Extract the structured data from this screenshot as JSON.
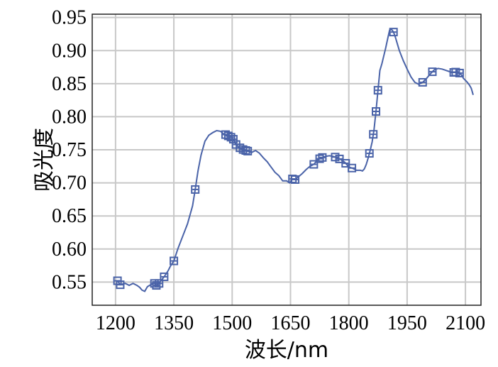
{
  "chart_data": {
    "type": "line",
    "title": "",
    "xlabel": "波长/nm",
    "ylabel": "吸光度",
    "xlim": [
      1140,
      2140
    ],
    "ylim": [
      0.515,
      0.955
    ],
    "grid": true,
    "x_ticks": [
      1200,
      1350,
      1500,
      1650,
      1800,
      1950,
      2100
    ],
    "y_ticks": [
      0.55,
      0.6,
      0.65,
      0.7,
      0.75,
      0.8,
      0.85,
      0.9,
      0.95
    ],
    "x_tick_labels": [
      "1200",
      "1350",
      "1500",
      "1650",
      "1800",
      "1950",
      "2100"
    ],
    "y_tick_labels": [
      "0.55",
      "0.60",
      "0.65",
      "0.70",
      "0.75",
      "0.80",
      "0.85",
      "0.90",
      "0.95"
    ],
    "series": [
      {
        "color": "#4a63a8",
        "x": [
          1205,
          1212,
          1225,
          1235,
          1245,
          1255,
          1262,
          1268,
          1275,
          1282,
          1290,
          1300,
          1305,
          1312,
          1318,
          1325,
          1335,
          1342,
          1350,
          1360,
          1370,
          1385,
          1398,
          1405,
          1412,
          1420,
          1430,
          1440,
          1450,
          1460,
          1470,
          1478,
          1483,
          1490,
          1497,
          1503,
          1510,
          1515,
          1520,
          1525,
          1530,
          1535,
          1540,
          1550,
          1560,
          1570,
          1580,
          1590,
          1600,
          1610,
          1620,
          1630,
          1640,
          1648,
          1655,
          1662,
          1670,
          1680,
          1690,
          1700,
          1710,
          1720,
          1730,
          1740,
          1750,
          1760,
          1770,
          1780,
          1790,
          1800,
          1810,
          1820,
          1830,
          1835,
          1840,
          1845,
          1850,
          1855,
          1860,
          1865,
          1870,
          1875,
          1880,
          1885,
          1890,
          1895,
          1900,
          1905,
          1910,
          1915,
          1920,
          1930,
          1940,
          1950,
          1960,
          1970,
          1980,
          1990,
          2000,
          2010,
          2020,
          2030,
          2040,
          2050,
          2060,
          2070,
          2080,
          2085,
          2090,
          2095,
          2100,
          2105,
          2110,
          2115,
          2120
        ],
        "y": [
          0.552,
          0.546,
          0.548,
          0.545,
          0.548,
          0.545,
          0.542,
          0.538,
          0.536,
          0.543,
          0.546,
          0.548,
          0.545,
          0.548,
          0.553,
          0.558,
          0.567,
          0.575,
          0.582,
          0.6,
          0.615,
          0.638,
          0.665,
          0.69,
          0.718,
          0.742,
          0.763,
          0.772,
          0.776,
          0.779,
          0.778,
          0.774,
          0.773,
          0.771,
          0.769,
          0.766,
          0.758,
          0.755,
          0.753,
          0.751,
          0.75,
          0.749,
          0.748,
          0.746,
          0.749,
          0.745,
          0.738,
          0.732,
          0.724,
          0.716,
          0.711,
          0.703,
          0.703,
          0.7,
          0.706,
          0.705,
          0.709,
          0.714,
          0.72,
          0.725,
          0.728,
          0.735,
          0.738,
          0.74,
          0.741,
          0.74,
          0.738,
          0.735,
          0.731,
          0.724,
          0.722,
          0.719,
          0.719,
          0.718,
          0.721,
          0.728,
          0.738,
          0.749,
          0.762,
          0.781,
          0.808,
          0.84,
          0.87,
          0.88,
          0.892,
          0.904,
          0.918,
          0.931,
          0.932,
          0.928,
          0.92,
          0.9,
          0.885,
          0.872,
          0.86,
          0.852,
          0.849,
          0.852,
          0.858,
          0.865,
          0.871,
          0.873,
          0.872,
          0.87,
          0.868,
          0.867,
          0.868,
          0.866,
          0.863,
          0.858,
          0.855,
          0.852,
          0.848,
          0.843,
          0.833
        ]
      }
    ],
    "markers": {
      "x": [
        1205,
        1212,
        1300,
        1305,
        1312,
        1325,
        1350,
        1405,
        1483,
        1490,
        1497,
        1503,
        1510,
        1520,
        1528,
        1535,
        1540,
        1655,
        1662,
        1710,
        1725,
        1732,
        1765,
        1776,
        1792,
        1808,
        1853,
        1863,
        1870,
        1875,
        1915,
        1990,
        2015,
        2070,
        2075,
        2085
      ]
    }
  }
}
